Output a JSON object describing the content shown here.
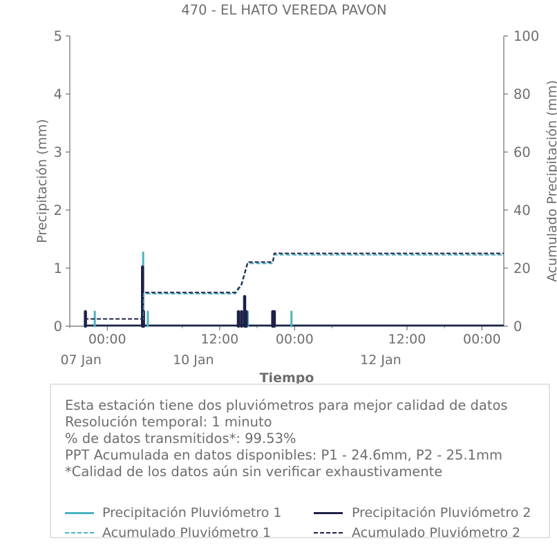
{
  "chart_data": {
    "type": "line",
    "title": "470 - EL HATO VEREDA PAVON",
    "xlabel": "Tiempo",
    "ylabel_left": "Precipitación (mm)",
    "ylabel_right": "Acumulado Precipitación (mm)",
    "ylim_left": [
      0,
      5
    ],
    "ylim_right": [
      0,
      100
    ],
    "yticks_left": [
      "0",
      "1",
      "2",
      "3",
      "4",
      "5"
    ],
    "yticks_right": [
      "0",
      "20",
      "40",
      "60",
      "80",
      "100"
    ],
    "xlim_hours": [
      -12,
      127
    ],
    "xticks": [
      {
        "hour": 0,
        "time": "00:00",
        "date": "07 Jan"
      },
      {
        "hour": 36,
        "time": "12:00",
        "date": "10 Jan"
      },
      {
        "hour": 60,
        "time": "00:00",
        "date": ""
      },
      {
        "hour": 96,
        "time": "12:00",
        "date": "12 Jan"
      },
      {
        "hour": 120,
        "time": "00:00",
        "date": ""
      }
    ],
    "minor_ticks_hours": [
      -12,
      24,
      48,
      72,
      108
    ],
    "grid": false,
    "series": [
      {
        "name": "Precipitación Pluviómetro 1",
        "kind": "bars",
        "axis": "left",
        "color": "#4bb3c2",
        "points": [
          [
            -7,
            0.25
          ],
          [
            -4,
            0.25
          ],
          [
            11.5,
            1.27
          ],
          [
            13,
            0.25
          ],
          [
            42,
            0.25
          ],
          [
            44,
            0.25
          ],
          [
            45,
            0.25
          ],
          [
            59,
            0.25
          ]
        ]
      },
      {
        "name": "Precipitación Pluviómetro 2",
        "kind": "bars",
        "axis": "left",
        "color": "#1e2147",
        "points": [
          [
            -7,
            0.25
          ],
          [
            11.3,
            1.02
          ],
          [
            11.6,
            0.25
          ],
          [
            42,
            0.25
          ],
          [
            43,
            0.25
          ],
          [
            44,
            0.51
          ],
          [
            44.5,
            0.25
          ],
          [
            53,
            0.25
          ],
          [
            53.5,
            0.25
          ]
        ]
      },
      {
        "name": "Acumulado Pluviómetro 1",
        "kind": "step-line",
        "axis": "right",
        "color": "#4bb3c2",
        "points": [
          [
            -7,
            0
          ],
          [
            -7,
            2.5
          ],
          [
            11.5,
            2.5
          ],
          [
            11.5,
            11.2
          ],
          [
            41,
            11.2
          ],
          [
            43,
            14
          ],
          [
            45,
            21.6
          ],
          [
            53,
            21.6
          ],
          [
            53.5,
            24.6
          ],
          [
            127,
            24.6
          ]
        ]
      },
      {
        "name": "Acumulado Pluviómetro 2",
        "kind": "step-line",
        "axis": "right",
        "color": "#1e2147",
        "points": [
          [
            -7,
            0
          ],
          [
            -7,
            2.5
          ],
          [
            11.3,
            2.5
          ],
          [
            11.3,
            11.6
          ],
          [
            41,
            11.6
          ],
          [
            43,
            14.5
          ],
          [
            45,
            22.1
          ],
          [
            53,
            22.1
          ],
          [
            53.5,
            25.1
          ],
          [
            127,
            25.1
          ]
        ]
      }
    ],
    "legend_position": "bottom"
  },
  "info": {
    "lines": [
      "Esta estación tiene dos pluviómetros para mejor calidad de datos",
      "Resolución temporal: 1 minuto",
      "% de datos transmitidos*: 99.53%",
      "PPT Acumulada en datos disponibles: P1 - 24.6mm, P2 - 25.1mm",
      "*Calidad de los datos aún sin verificar exhaustivamente"
    ]
  },
  "legend": {
    "items": [
      {
        "label": "Precipitación Pluviómetro 1",
        "color": "#4bb3c2",
        "style": "solid"
      },
      {
        "label": "Precipitación Pluviómetro 2",
        "color": "#1e2147",
        "style": "solid"
      },
      {
        "label": "Acumulado Pluviómetro 1",
        "color": "#4bb3c2",
        "style": "dashed"
      },
      {
        "label": "Acumulado Pluviómetro 2",
        "color": "#1e2147",
        "style": "dashed"
      }
    ]
  }
}
